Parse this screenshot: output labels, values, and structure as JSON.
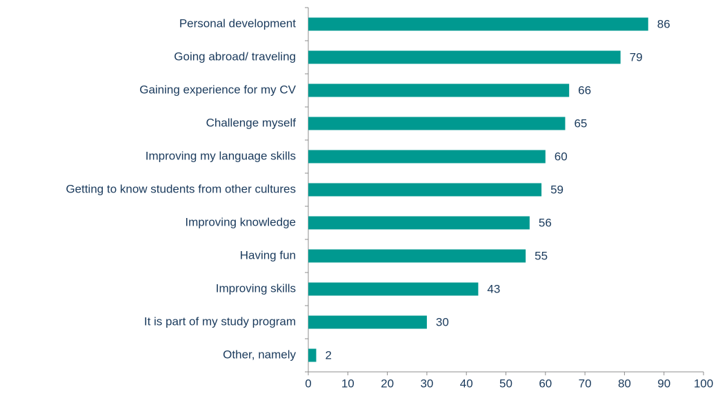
{
  "chart_data": {
    "type": "bar",
    "orientation": "horizontal",
    "categories": [
      "Personal development",
      "Going abroad/ traveling",
      "Gaining experience for my CV",
      "Challenge myself",
      "Improving my language skills",
      "Getting to know students from other cultures",
      "Improving knowledge",
      "Having fun",
      "Improving skills",
      "It is part of my study program",
      "Other, namely"
    ],
    "values": [
      86,
      79,
      66,
      65,
      60,
      59,
      56,
      55,
      43,
      30,
      2
    ],
    "color": "#009990",
    "xlim": [
      0,
      100
    ],
    "xticks": [
      0,
      10,
      20,
      30,
      40,
      50,
      60,
      70,
      80,
      90,
      100
    ]
  }
}
